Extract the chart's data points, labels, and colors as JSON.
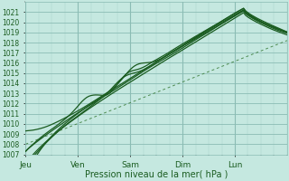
{
  "title": "",
  "xlabel": "Pression niveau de la mer( hPa )",
  "ylim": [
    1007,
    1022
  ],
  "yticks": [
    1007,
    1008,
    1009,
    1010,
    1011,
    1012,
    1013,
    1014,
    1015,
    1016,
    1017,
    1018,
    1019,
    1020,
    1021
  ],
  "xtick_labels": [
    "Jeu",
    "Ven",
    "Sam",
    "Dim",
    "Lun"
  ],
  "xtick_positions": [
    0,
    24,
    48,
    72,
    96
  ],
  "xlim": [
    0,
    120
  ],
  "bg_color": "#c5e8e0",
  "grid_major_color": "#8bbcb4",
  "grid_minor_color": "#a8d4cc",
  "line_color": "#1a5c20",
  "dashed_line_color": "#3a7c3a",
  "n_hours": 121,
  "figsize": [
    3.2,
    2.0
  ],
  "dpi": 100
}
